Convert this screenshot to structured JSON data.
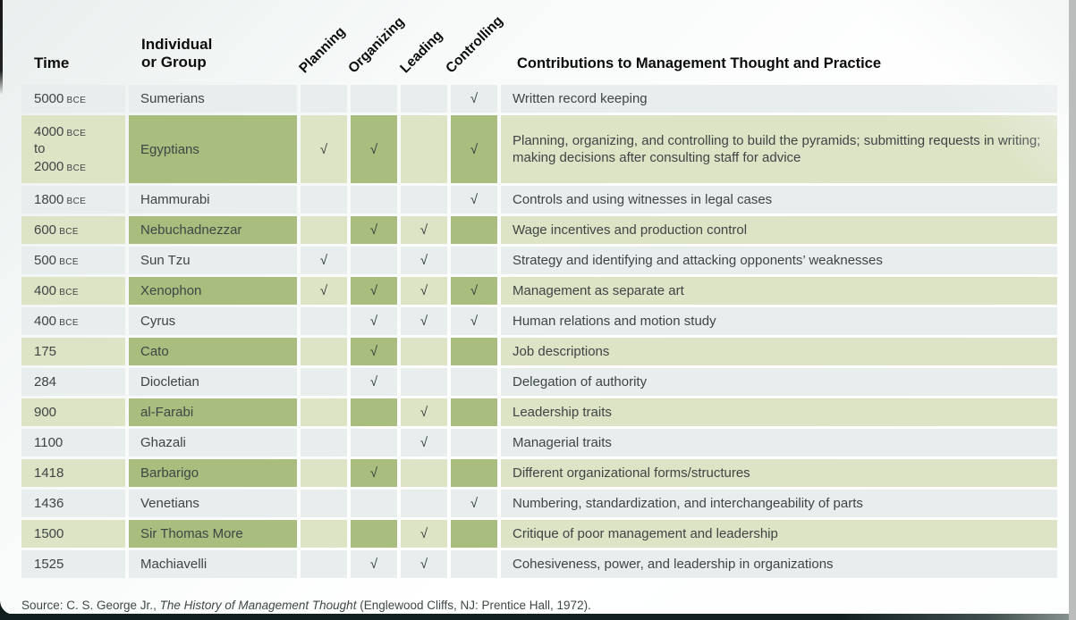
{
  "colors": {
    "row_gray": "#e8edee",
    "row_light_green": "#dce4c5",
    "row_dark_green": "#a9bd7f",
    "page_bottom_bar": "#122120",
    "body_text": "#3f4545"
  },
  "table": {
    "headers": {
      "time": "Time",
      "group_line1": "Individual",
      "group_line2": "or Group",
      "functions": [
        "Planning",
        "Organizing",
        "Leading",
        "Controlling"
      ],
      "contributions": "Contributions to Management Thought and Practice"
    },
    "check_glyph": "√",
    "rows": [
      {
        "highlight": false,
        "time_lines": [
          {
            "v": "5000",
            "era": "BCE"
          }
        ],
        "name": "Sumerians",
        "checks": [
          false,
          false,
          false,
          true
        ],
        "contribution": "Written record keeping"
      },
      {
        "highlight": true,
        "time_lines": [
          {
            "v": "4000",
            "era": "BCE"
          },
          {
            "v": "to",
            "era": ""
          },
          {
            "v": "2000",
            "era": "BCE"
          }
        ],
        "name": "Egyptians",
        "checks": [
          true,
          true,
          false,
          true
        ],
        "contribution": "Planning, organizing, and controlling to build the pyramids; submitting requests in writing; making decisions after consulting staff for advice"
      },
      {
        "highlight": false,
        "time_lines": [
          {
            "v": "1800",
            "era": "BCE"
          }
        ],
        "name": "Hammurabi",
        "checks": [
          false,
          false,
          false,
          true
        ],
        "contribution": "Controls and using witnesses in legal cases"
      },
      {
        "highlight": true,
        "time_lines": [
          {
            "v": "600",
            "era": "BCE"
          }
        ],
        "name": "Nebuchadnezzar",
        "checks": [
          false,
          true,
          true,
          false
        ],
        "contribution": "Wage incentives and production control"
      },
      {
        "highlight": false,
        "time_lines": [
          {
            "v": "500",
            "era": "BCE"
          }
        ],
        "name": "Sun Tzu",
        "checks": [
          true,
          false,
          true,
          false
        ],
        "contribution": "Strategy and identifying and attacking opponents’ weaknesses"
      },
      {
        "highlight": true,
        "time_lines": [
          {
            "v": "400",
            "era": "BCE"
          }
        ],
        "name": "Xenophon",
        "checks": [
          true,
          true,
          true,
          true
        ],
        "contribution": "Management as separate art"
      },
      {
        "highlight": false,
        "time_lines": [
          {
            "v": "400",
            "era": "BCE"
          }
        ],
        "name": "Cyrus",
        "checks": [
          false,
          true,
          true,
          true
        ],
        "contribution": "Human relations and motion study"
      },
      {
        "highlight": true,
        "time_lines": [
          {
            "v": "175",
            "era": ""
          }
        ],
        "name": "Cato",
        "checks": [
          false,
          true,
          false,
          false
        ],
        "contribution": "Job descriptions"
      },
      {
        "highlight": false,
        "time_lines": [
          {
            "v": "284",
            "era": ""
          }
        ],
        "name": "Diocletian",
        "checks": [
          false,
          true,
          false,
          false
        ],
        "contribution": "Delegation of authority"
      },
      {
        "highlight": true,
        "time_lines": [
          {
            "v": "900",
            "era": ""
          }
        ],
        "name": "al-Farabi",
        "checks": [
          false,
          false,
          true,
          false
        ],
        "contribution": "Leadership traits"
      },
      {
        "highlight": false,
        "time_lines": [
          {
            "v": "1100",
            "era": ""
          }
        ],
        "name": "Ghazali",
        "checks": [
          false,
          false,
          true,
          false
        ],
        "contribution": "Managerial traits"
      },
      {
        "highlight": true,
        "time_lines": [
          {
            "v": "1418",
            "era": ""
          }
        ],
        "name": "Barbarigo",
        "checks": [
          false,
          true,
          false,
          false
        ],
        "contribution": "Different organizational forms/structures"
      },
      {
        "highlight": false,
        "time_lines": [
          {
            "v": "1436",
            "era": ""
          }
        ],
        "name": "Venetians",
        "checks": [
          false,
          false,
          false,
          true
        ],
        "contribution": "Numbering, standardization, and interchangeability of parts"
      },
      {
        "highlight": true,
        "time_lines": [
          {
            "v": "1500",
            "era": ""
          }
        ],
        "name": "Sir Thomas More",
        "checks": [
          false,
          false,
          true,
          false
        ],
        "contribution": "Critique of poor management and leadership"
      },
      {
        "highlight": false,
        "time_lines": [
          {
            "v": "1525",
            "era": ""
          }
        ],
        "name": "Machiavelli",
        "checks": [
          false,
          true,
          true,
          false
        ],
        "contribution": "Cohesiveness, power, and leadership in organizations"
      }
    ]
  },
  "source": {
    "prefix": "Source: C. S. George Jr., ",
    "title": "The History of Management Thought",
    "suffix": " (Englewood Cliffs, NJ: Prentice Hall, 1972)."
  }
}
